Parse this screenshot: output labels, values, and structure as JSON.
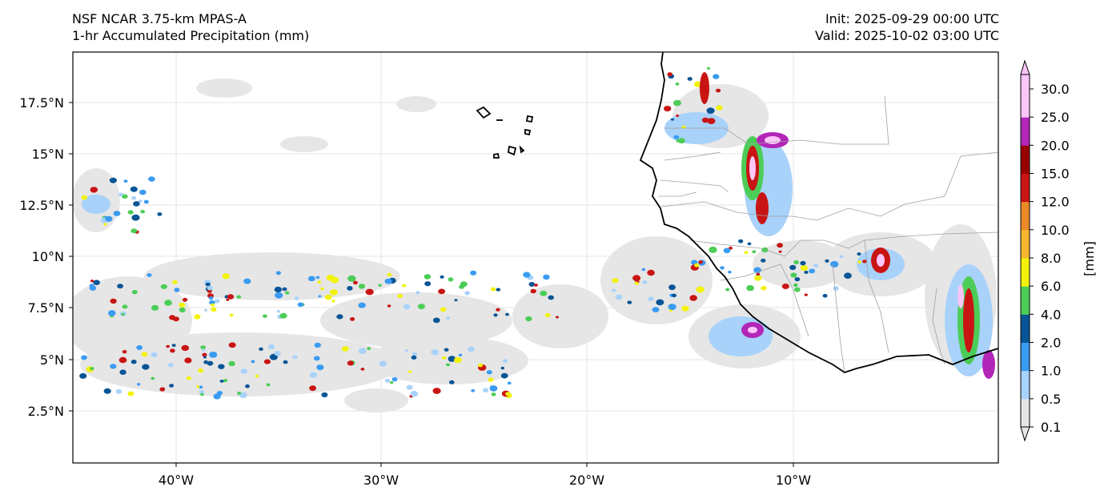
{
  "header": {
    "model": "NSF NCAR 3.75-km MPAS-A",
    "field": "1-hr Accumulated Precipitation (mm)",
    "init": "Init: 2025-09-29 00:00 UTC",
    "valid": "Valid: 2025-10-02 03:00 UTC"
  },
  "axes": {
    "lon_ticks": [
      "40°W",
      "30°W",
      "20°W",
      "10°W"
    ],
    "lat_ticks": [
      "17.5°N",
      "15°N",
      "12.5°N",
      "10°N",
      "7.5°N",
      "5°N",
      "2.5°N"
    ]
  },
  "colorbar": {
    "label": "[mm]",
    "levels": [
      "0.1",
      "0.5",
      "1.0",
      "2.0",
      "4.0",
      "6.0",
      "8.0",
      "10.0",
      "12.0",
      "15.0",
      "20.0",
      "25.0",
      "30.0"
    ],
    "colors": [
      "#e6e6e6",
      "#a8d2fa",
      "#3a9bf2",
      "#075596",
      "#4ccd57",
      "#f2f20c",
      "#f5b731",
      "#eb8a27",
      "#c91414",
      "#990000",
      "#b226b8",
      "#fcc6fa"
    ]
  }
}
